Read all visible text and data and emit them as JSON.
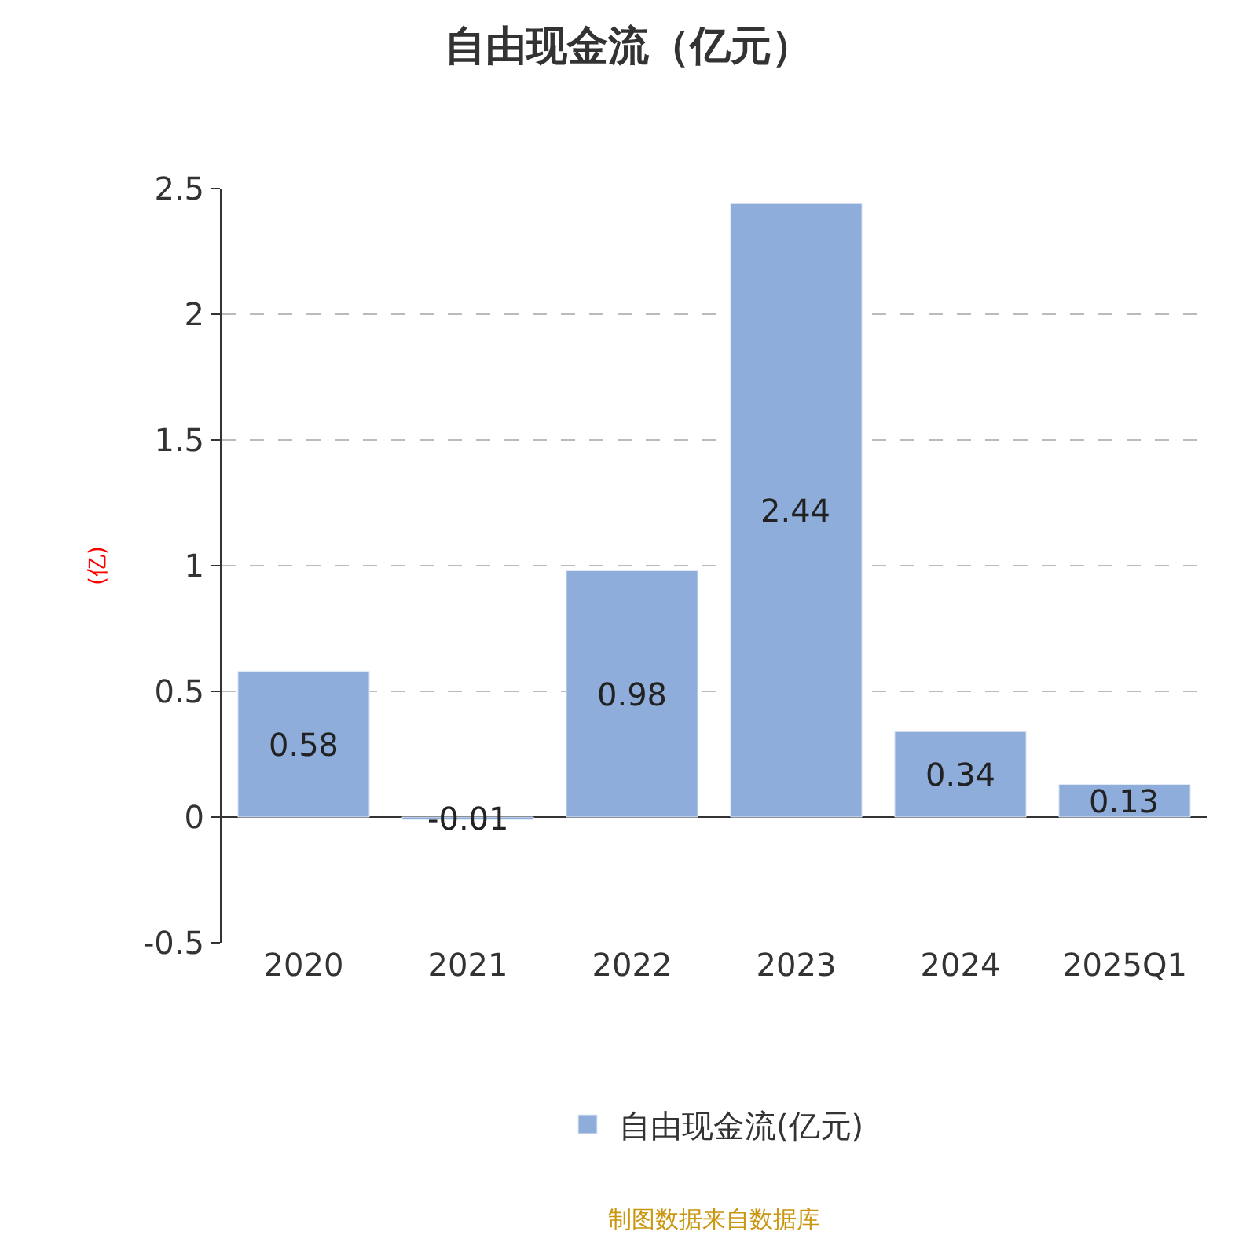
{
  "chart_data": {
    "type": "bar",
    "title": "自由现金流（亿元）",
    "ylabel": "(亿)",
    "categories": [
      "2020",
      "2021",
      "2022",
      "2023",
      "2024",
      "2025Q1"
    ],
    "series": [
      {
        "name": "自由现金流(亿元)",
        "color": "#8eaddb",
        "values": [
          0.58,
          -0.01,
          0.98,
          2.44,
          0.34,
          0.13
        ]
      }
    ],
    "ylim": [
      -0.5,
      2.5
    ],
    "yticks": [
      -0.5,
      0,
      0.5,
      1,
      1.5,
      2,
      2.5
    ],
    "grid": "y",
    "legend": "bottom",
    "data_labels": true,
    "annotations": [
      "制图数据来自数据库"
    ]
  }
}
